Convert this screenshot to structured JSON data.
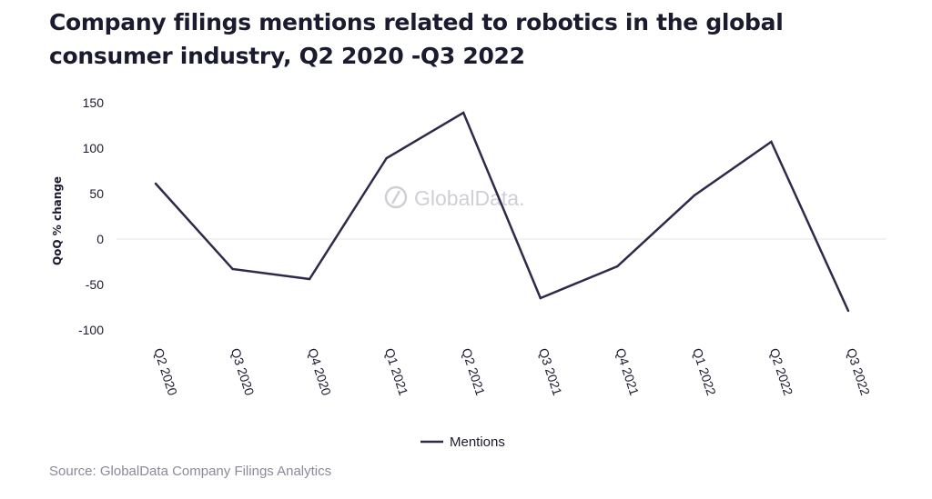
{
  "title": "Company filings mentions related to robotics in the global consumer industry, Q2 2020 -Q3 2022",
  "source": "Source: GlobalData Company Filings Analytics",
  "watermark": "GlobalData.",
  "colors": {
    "line": "#2e2a4a",
    "zero_line": "#e6e6e6",
    "text": "#1b1b2f",
    "muted": "#8a8a99",
    "watermark": "#cfcfd6"
  },
  "chart_data": {
    "type": "line",
    "categories": [
      "Q2 2020",
      "Q3 2020",
      "Q4 2020",
      "Q1 2021",
      "Q2 2021",
      "Q3 2021",
      "Q4 2021",
      "Q1 2022",
      "Q2 2022",
      "Q3 2022"
    ],
    "series": [
      {
        "name": "Mentions",
        "values": [
          61,
          -33,
          -44,
          89,
          139,
          -65,
          -30,
          48,
          107,
          -79
        ]
      }
    ],
    "xlabel": "",
    "ylabel": "QoQ % change",
    "ylim": [
      -100,
      150
    ],
    "yticks": [
      150,
      100,
      50,
      0,
      -50,
      -100
    ],
    "ytick_labels": [
      "150",
      "100",
      "50",
      "0",
      "-50",
      "-100"
    ],
    "legend": "bottom-center",
    "grid": false
  }
}
